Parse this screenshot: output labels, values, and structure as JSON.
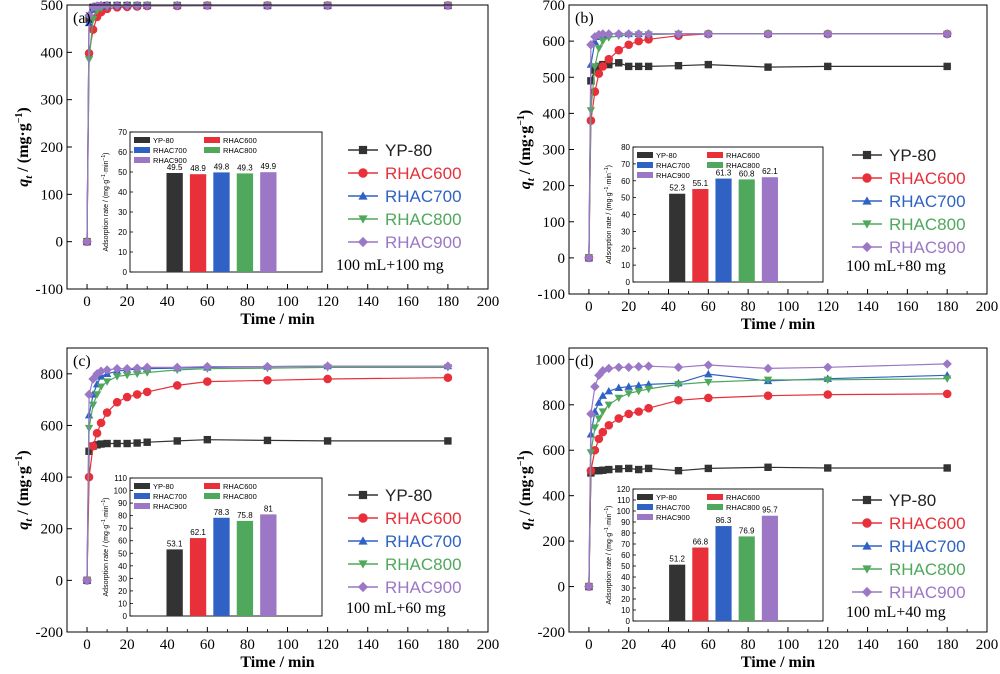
{
  "colors": {
    "YP-80": "#333333",
    "RHAC600": "#e8303a",
    "RHAC700": "#2f62c4",
    "RHAC800": "#4fa85c",
    "RHAC900": "#9b77c6"
  },
  "chart_data": [
    {
      "type": "line",
      "panel_label": "(a)",
      "xlabel": "Time / min",
      "ylabel": "q_t / (mg·g^-1)",
      "xlim": [
        -10,
        200
      ],
      "ylim": [
        -100,
        500
      ],
      "xticks": [
        0,
        20,
        40,
        60,
        80,
        100,
        120,
        140,
        160,
        180,
        200
      ],
      "yticks": [
        -100,
        0,
        100,
        200,
        300,
        400,
        500
      ],
      "legend_position": "right",
      "condition": "100 mL+100 mg",
      "series": [
        {
          "name": "YP-80",
          "x": [
            0,
            1,
            3,
            5,
            7,
            10,
            15,
            20,
            25,
            30,
            45,
            60,
            90,
            120,
            180
          ],
          "y": [
            0,
            470,
            495,
            497,
            498,
            499,
            499,
            499,
            499,
            499,
            499,
            499,
            499,
            499,
            499
          ]
        },
        {
          "name": "RHAC600",
          "x": [
            0,
            1,
            3,
            5,
            7,
            10,
            15,
            20,
            25,
            30,
            45,
            60,
            90,
            120,
            180
          ],
          "y": [
            0,
            398,
            448,
            475,
            485,
            492,
            495,
            496,
            497,
            498,
            498,
            499,
            499,
            499,
            499
          ]
        },
        {
          "name": "RHAC700",
          "x": [
            0,
            1,
            3,
            5,
            7,
            10,
            15,
            20,
            25,
            30,
            45,
            60,
            90,
            120,
            180
          ],
          "y": [
            0,
            462,
            490,
            496,
            497,
            498,
            499,
            499,
            499,
            499,
            499,
            499,
            499,
            499,
            499
          ]
        },
        {
          "name": "RHAC800",
          "x": [
            0,
            1,
            3,
            5,
            7,
            10,
            15,
            20,
            25,
            30,
            45,
            60,
            90,
            120,
            180
          ],
          "y": [
            0,
            385,
            470,
            488,
            493,
            496,
            498,
            498,
            499,
            499,
            499,
            499,
            499,
            499,
            499
          ]
        },
        {
          "name": "RHAC900",
          "x": [
            0,
            1,
            3,
            5,
            7,
            10,
            15,
            20,
            25,
            30,
            45,
            60,
            90,
            120,
            180
          ],
          "y": [
            0,
            478,
            496,
            498,
            499,
            499,
            499,
            499,
            499,
            499,
            499,
            499,
            499,
            499,
            499
          ]
        }
      ],
      "inset": {
        "type": "bar",
        "ylabel": "Adsorption rate / (mg·g^-1·min^-1)",
        "ylim": [
          0,
          70
        ],
        "yticks": [
          0,
          10,
          20,
          30,
          40,
          50,
          60,
          70
        ],
        "categories": [
          "YP-80",
          "RHAC600",
          "RHAC700",
          "RHAC800",
          "RHAC900"
        ],
        "values": [
          49.5,
          48.9,
          49.8,
          49.3,
          49.9
        ],
        "labels": [
          "49.5",
          "48.9",
          "49.8",
          "49.3",
          "49.9"
        ]
      }
    },
    {
      "type": "line",
      "panel_label": "(b)",
      "xlabel": "Time / min",
      "ylabel": "q_t / (mg·g^-1)",
      "xlim": [
        -10,
        200
      ],
      "ylim": [
        -100,
        700
      ],
      "xticks": [
        0,
        20,
        40,
        60,
        80,
        100,
        120,
        140,
        160,
        180,
        200
      ],
      "yticks": [
        -100,
        0,
        100,
        200,
        300,
        400,
        500,
        600,
        700
      ],
      "legend_position": "right",
      "condition": "100 mL+80 mg",
      "series": [
        {
          "name": "YP-80",
          "x": [
            0,
            1,
            3,
            5,
            7,
            10,
            15,
            20,
            25,
            30,
            45,
            60,
            90,
            120,
            180
          ],
          "y": [
            0,
            490,
            520,
            530,
            535,
            535,
            540,
            530,
            530,
            530,
            532,
            535,
            528,
            530,
            530
          ]
        },
        {
          "name": "RHAC600",
          "x": [
            0,
            1,
            3,
            5,
            7,
            10,
            15,
            20,
            25,
            30,
            45,
            60,
            90,
            120,
            180
          ],
          "y": [
            0,
            380,
            460,
            510,
            530,
            550,
            575,
            590,
            600,
            605,
            615,
            620,
            620,
            620,
            620
          ]
        },
        {
          "name": "RHAC700",
          "x": [
            0,
            1,
            3,
            5,
            7,
            10,
            15,
            20,
            25,
            30,
            45,
            60,
            90,
            120,
            180
          ],
          "y": [
            0,
            535,
            598,
            612,
            617,
            620,
            620,
            620,
            620,
            620,
            620,
            620,
            620,
            620,
            620
          ]
        },
        {
          "name": "RHAC800",
          "x": [
            0,
            1,
            3,
            5,
            7,
            10,
            15,
            20,
            25,
            30,
            45,
            60,
            90,
            120,
            180
          ],
          "y": [
            0,
            408,
            530,
            580,
            600,
            610,
            615,
            617,
            618,
            618,
            620,
            620,
            620,
            620,
            620
          ]
        },
        {
          "name": "RHAC900",
          "x": [
            0,
            1,
            3,
            5,
            7,
            10,
            15,
            20,
            25,
            30,
            45,
            60,
            90,
            120,
            180
          ],
          "y": [
            0,
            590,
            612,
            618,
            620,
            620,
            620,
            620,
            620,
            620,
            620,
            620,
            620,
            620,
            620
          ]
        }
      ],
      "inset": {
        "type": "bar",
        "ylabel": "Adsorption rate / (mg·g^-1·min^-1)",
        "ylim": [
          0,
          80
        ],
        "yticks": [
          0,
          10,
          20,
          30,
          40,
          50,
          60,
          70,
          80
        ],
        "categories": [
          "YP-80",
          "RHAC600",
          "RHAC700",
          "RHAC800",
          "RHAC900"
        ],
        "values": [
          52.3,
          55.1,
          61.3,
          60.8,
          62.1
        ],
        "labels": [
          "52.3",
          "55.1",
          "61.3",
          "60.8",
          "62.1"
        ]
      }
    },
    {
      "type": "line",
      "panel_label": "(c)",
      "xlabel": "Time / min",
      "ylabel": "q_t / (mg·g^-1)",
      "xlim": [
        -10,
        200
      ],
      "ylim": [
        -200,
        900
      ],
      "xticks": [
        0,
        20,
        40,
        60,
        80,
        100,
        120,
        140,
        160,
        180,
        200
      ],
      "yticks": [
        -200,
        0,
        200,
        400,
        600,
        800
      ],
      "legend_position": "right",
      "condition": "100 mL+60 mg",
      "series": [
        {
          "name": "YP-80",
          "x": [
            0,
            1,
            3,
            5,
            7,
            10,
            15,
            20,
            25,
            30,
            45,
            60,
            90,
            120,
            180
          ],
          "y": [
            0,
            500,
            520,
            525,
            528,
            530,
            530,
            530,
            532,
            535,
            540,
            545,
            542,
            540,
            540
          ]
        },
        {
          "name": "RHAC600",
          "x": [
            0,
            1,
            3,
            5,
            7,
            10,
            15,
            20,
            25,
            30,
            45,
            60,
            90,
            120,
            180
          ],
          "y": [
            0,
            400,
            520,
            570,
            610,
            650,
            690,
            710,
            720,
            730,
            755,
            770,
            775,
            780,
            785
          ]
        },
        {
          "name": "RHAC700",
          "x": [
            0,
            1,
            3,
            5,
            7,
            10,
            15,
            20,
            25,
            30,
            45,
            60,
            90,
            120,
            180
          ],
          "y": [
            0,
            640,
            720,
            760,
            790,
            800,
            810,
            815,
            818,
            820,
            822,
            825,
            828,
            830,
            830
          ]
        },
        {
          "name": "RHAC800",
          "x": [
            0,
            1,
            3,
            5,
            7,
            10,
            15,
            20,
            25,
            30,
            45,
            60,
            90,
            120,
            180
          ],
          "y": [
            0,
            590,
            680,
            720,
            750,
            770,
            790,
            795,
            800,
            805,
            815,
            820,
            822,
            825,
            825
          ]
        },
        {
          "name": "RHAC900",
          "x": [
            0,
            1,
            3,
            5,
            7,
            10,
            15,
            20,
            25,
            30,
            45,
            60,
            90,
            120,
            180
          ],
          "y": [
            0,
            720,
            780,
            800,
            810,
            815,
            820,
            820,
            822,
            825,
            825,
            828,
            828,
            830,
            830
          ]
        }
      ],
      "inset": {
        "type": "bar",
        "ylabel": "Adsorption rate / (mg·g^-1·min^-1)",
        "ylim": [
          0,
          110
        ],
        "yticks": [
          0,
          10,
          20,
          30,
          40,
          50,
          60,
          70,
          80,
          90,
          100,
          110
        ],
        "categories": [
          "YP-80",
          "RHAC600",
          "RHAC700",
          "RHAC800",
          "RHAC900"
        ],
        "values": [
          53.1,
          62.1,
          78.3,
          75.8,
          81
        ],
        "labels": [
          "53.1",
          "62.1",
          "78.3",
          "75.8",
          "81"
        ]
      }
    },
    {
      "type": "line",
      "panel_label": "(d)",
      "xlabel": "Time / min",
      "ylabel": "q_t / (mg·g^-1)",
      "xlim": [
        -10,
        200
      ],
      "ylim": [
        -200,
        1050
      ],
      "xticks": [
        0,
        20,
        40,
        60,
        80,
        100,
        120,
        140,
        160,
        180,
        200
      ],
      "yticks": [
        -200,
        0,
        200,
        400,
        600,
        800,
        1000
      ],
      "legend_position": "right",
      "condition": "100 mL+40 mg",
      "series": [
        {
          "name": "YP-80",
          "x": [
            0,
            1,
            3,
            5,
            7,
            10,
            15,
            20,
            25,
            30,
            45,
            60,
            90,
            120,
            180
          ],
          "y": [
            0,
            500,
            510,
            510,
            512,
            515,
            518,
            520,
            515,
            520,
            510,
            520,
            525,
            522,
            522
          ]
        },
        {
          "name": "RHAC600",
          "x": [
            0,
            1,
            3,
            5,
            7,
            10,
            15,
            20,
            25,
            30,
            45,
            60,
            90,
            120,
            180
          ],
          "y": [
            0,
            510,
            600,
            650,
            680,
            710,
            740,
            760,
            770,
            785,
            820,
            830,
            840,
            845,
            848
          ]
        },
        {
          "name": "RHAC700",
          "x": [
            0,
            1,
            3,
            5,
            7,
            10,
            15,
            20,
            25,
            30,
            45,
            60,
            90,
            120,
            180
          ],
          "y": [
            0,
            670,
            770,
            810,
            840,
            860,
            875,
            880,
            885,
            890,
            895,
            935,
            905,
            915,
            930
          ]
        },
        {
          "name": "RHAC800",
          "x": [
            0,
            1,
            3,
            5,
            7,
            10,
            15,
            20,
            25,
            30,
            45,
            60,
            90,
            120,
            180
          ],
          "y": [
            0,
            590,
            700,
            740,
            770,
            800,
            830,
            850,
            860,
            870,
            890,
            900,
            910,
            910,
            915
          ]
        },
        {
          "name": "RHAC900",
          "x": [
            0,
            1,
            3,
            5,
            7,
            10,
            15,
            20,
            25,
            30,
            45,
            60,
            90,
            120,
            180
          ],
          "y": [
            0,
            760,
            880,
            930,
            950,
            960,
            965,
            965,
            968,
            970,
            965,
            975,
            960,
            965,
            980
          ]
        }
      ],
      "inset": {
        "type": "bar",
        "ylabel": "Adsorption rate / (mg·g^-1·min^-1)",
        "ylim": [
          0,
          120
        ],
        "yticks": [
          0,
          10,
          20,
          30,
          40,
          50,
          60,
          70,
          80,
          90,
          100,
          110,
          120
        ],
        "categories": [
          "YP-80",
          "RHAC600",
          "RHAC700",
          "RHAC800",
          "RHAC900"
        ],
        "values": [
          51.2,
          66.8,
          86.3,
          76.9,
          95.7
        ],
        "labels": [
          "51.2",
          "66.8",
          "86.3",
          "76.9",
          "95.7"
        ]
      }
    }
  ]
}
